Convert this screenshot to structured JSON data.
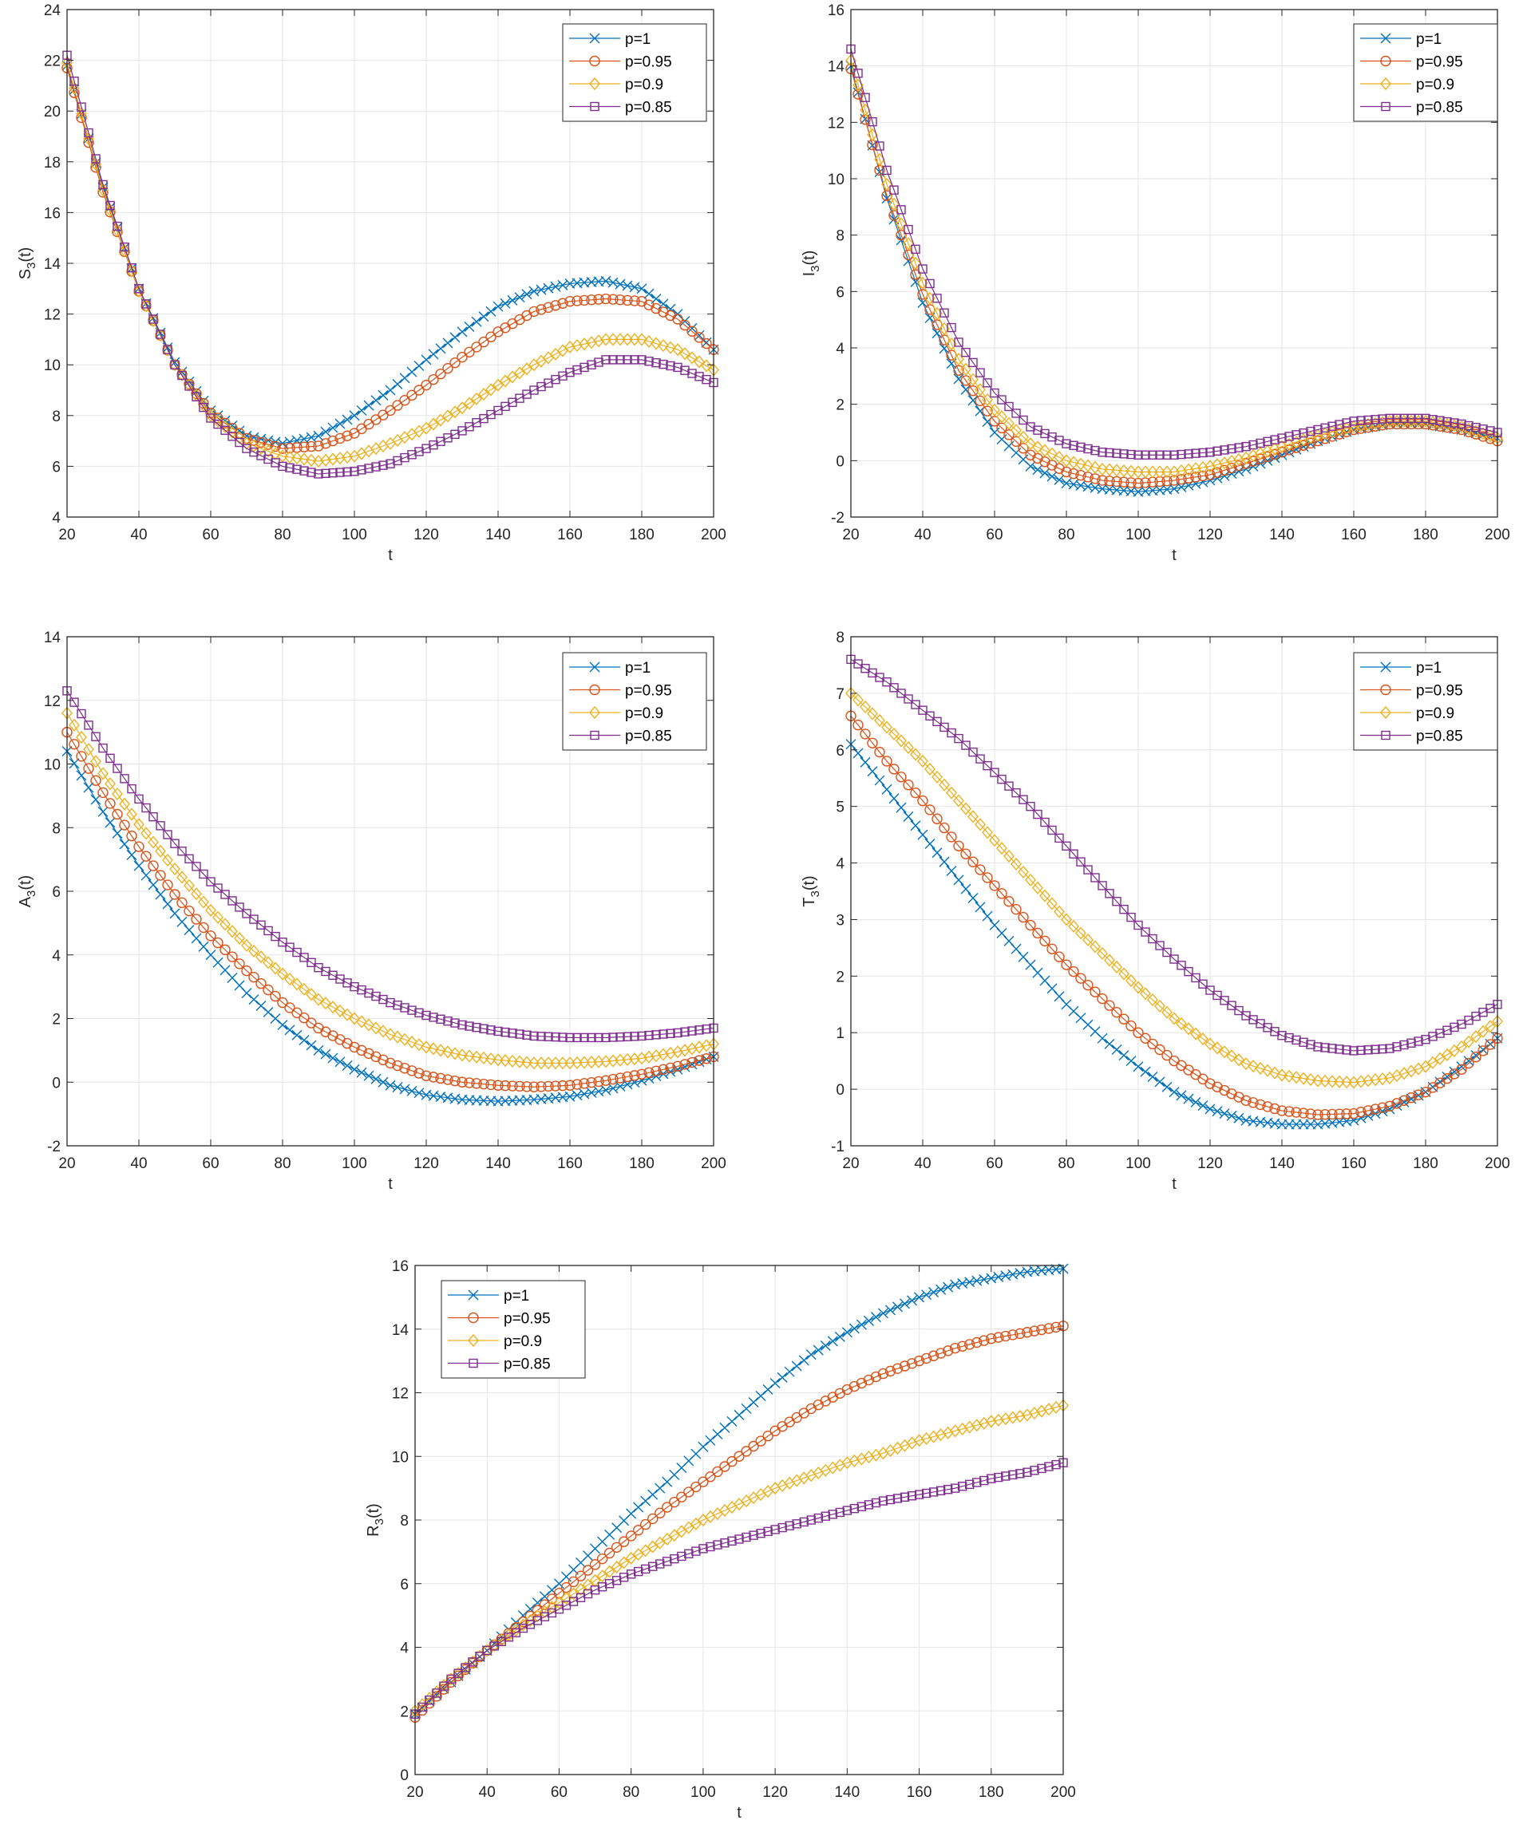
{
  "legend_labels": [
    "p=1",
    "p=0.95",
    "p=0.9",
    "p=0.85"
  ],
  "series_colors": [
    "#0072BD",
    "#D95319",
    "#EDB120",
    "#7E2F8E"
  ],
  "series_markers": [
    "x-mark",
    "circle",
    "diamond",
    "square"
  ],
  "chart_data": [
    {
      "id": "S3",
      "type": "line",
      "xlabel": "t",
      "ylabel": "S",
      "ylabel_sub": "3",
      "ylabel_suffix": "(t)",
      "xlim": [
        20,
        200
      ],
      "ylim": [
        4,
        24
      ],
      "xticks": [
        20,
        40,
        60,
        80,
        100,
        120,
        140,
        160,
        180,
        200
      ],
      "yticks": [
        4,
        6,
        8,
        10,
        12,
        14,
        16,
        18,
        20,
        22,
        24
      ],
      "grid": true,
      "legend_position": "top-right",
      "series": [
        {
          "name": "p=1",
          "x": [
            20,
            30,
            40,
            50,
            60,
            70,
            80,
            90,
            100,
            110,
            120,
            130,
            140,
            150,
            160,
            170,
            180,
            190,
            200
          ],
          "values": [
            21.8,
            17.0,
            13.0,
            10.1,
            8.2,
            7.2,
            6.9,
            7.2,
            8.0,
            9.0,
            10.2,
            11.3,
            12.3,
            12.9,
            13.2,
            13.3,
            13.0,
            12.0,
            10.6
          ]
        },
        {
          "name": "p=0.95",
          "x": [
            20,
            30,
            40,
            50,
            60,
            70,
            80,
            90,
            100,
            110,
            120,
            130,
            140,
            150,
            160,
            170,
            180,
            190,
            200
          ],
          "values": [
            21.7,
            16.8,
            12.9,
            10.0,
            8.1,
            7.1,
            6.7,
            6.8,
            7.3,
            8.2,
            9.2,
            10.3,
            11.3,
            12.1,
            12.5,
            12.6,
            12.5,
            11.8,
            10.6
          ]
        },
        {
          "name": "p=0.9",
          "x": [
            20,
            30,
            40,
            50,
            60,
            70,
            80,
            90,
            100,
            110,
            120,
            130,
            140,
            150,
            160,
            170,
            180,
            190,
            200
          ],
          "values": [
            21.9,
            16.9,
            12.9,
            10.0,
            8.0,
            6.9,
            6.4,
            6.2,
            6.4,
            6.9,
            7.5,
            8.3,
            9.2,
            10.0,
            10.7,
            11.0,
            11.0,
            10.6,
            9.8
          ]
        },
        {
          "name": "p=0.85",
          "x": [
            20,
            30,
            40,
            50,
            60,
            70,
            80,
            90,
            100,
            110,
            120,
            130,
            140,
            150,
            160,
            170,
            180,
            190,
            200
          ],
          "values": [
            22.2,
            17.1,
            13.0,
            10.0,
            7.9,
            6.7,
            6.0,
            5.7,
            5.8,
            6.1,
            6.7,
            7.4,
            8.2,
            9.0,
            9.7,
            10.2,
            10.2,
            9.9,
            9.3
          ]
        }
      ]
    },
    {
      "id": "I3",
      "type": "line",
      "xlabel": "t",
      "ylabel": "I",
      "ylabel_sub": "3",
      "ylabel_suffix": "(t)",
      "xlim": [
        20,
        200
      ],
      "ylim": [
        -2,
        16
      ],
      "xticks": [
        20,
        40,
        60,
        80,
        100,
        120,
        140,
        160,
        180,
        200
      ],
      "yticks": [
        -2,
        0,
        2,
        4,
        6,
        8,
        10,
        12,
        14,
        16
      ],
      "grid": true,
      "legend_position": "top-right",
      "series": [
        {
          "name": "p=1",
          "x": [
            20,
            30,
            40,
            50,
            60,
            70,
            80,
            90,
            100,
            110,
            120,
            130,
            140,
            150,
            160,
            170,
            180,
            190,
            200
          ],
          "values": [
            14.0,
            9.3,
            5.6,
            2.9,
            1.0,
            -0.2,
            -0.8,
            -1.0,
            -1.1,
            -1.0,
            -0.7,
            -0.3,
            0.2,
            0.7,
            1.1,
            1.3,
            1.3,
            1.1,
            0.8
          ]
        },
        {
          "name": "p=0.95",
          "x": [
            20,
            30,
            40,
            50,
            60,
            70,
            80,
            90,
            100,
            110,
            120,
            130,
            140,
            150,
            160,
            170,
            180,
            190,
            200
          ],
          "values": [
            13.9,
            9.4,
            5.9,
            3.2,
            1.4,
            0.2,
            -0.4,
            -0.7,
            -0.8,
            -0.7,
            -0.5,
            -0.1,
            0.3,
            0.7,
            1.1,
            1.3,
            1.3,
            1.1,
            0.7
          ]
        },
        {
          "name": "p=0.9",
          "x": [
            20,
            30,
            40,
            50,
            60,
            70,
            80,
            90,
            100,
            110,
            120,
            130,
            140,
            150,
            160,
            170,
            180,
            190,
            200
          ],
          "values": [
            14.2,
            9.8,
            6.3,
            3.6,
            1.8,
            0.6,
            0.0,
            -0.3,
            -0.4,
            -0.4,
            -0.2,
            0.1,
            0.5,
            0.9,
            1.2,
            1.4,
            1.4,
            1.2,
            0.8
          ]
        },
        {
          "name": "p=0.85",
          "x": [
            20,
            30,
            40,
            50,
            60,
            70,
            80,
            90,
            100,
            110,
            120,
            130,
            140,
            150,
            160,
            170,
            180,
            190,
            200
          ],
          "values": [
            14.6,
            10.3,
            6.8,
            4.2,
            2.4,
            1.2,
            0.6,
            0.3,
            0.2,
            0.2,
            0.3,
            0.5,
            0.8,
            1.1,
            1.4,
            1.5,
            1.5,
            1.3,
            1.0
          ]
        }
      ]
    },
    {
      "id": "A3",
      "type": "line",
      "xlabel": "t",
      "ylabel": "A",
      "ylabel_sub": "3",
      "ylabel_suffix": "(t)",
      "xlim": [
        20,
        200
      ],
      "ylim": [
        -2,
        14
      ],
      "xticks": [
        20,
        40,
        60,
        80,
        100,
        120,
        140,
        160,
        180,
        200
      ],
      "yticks": [
        -2,
        0,
        2,
        4,
        6,
        8,
        10,
        12,
        14
      ],
      "grid": true,
      "legend_position": "top-right",
      "series": [
        {
          "name": "p=1",
          "x": [
            20,
            30,
            40,
            50,
            60,
            70,
            80,
            90,
            100,
            110,
            120,
            130,
            140,
            150,
            160,
            170,
            180,
            190,
            200
          ],
          "values": [
            10.4,
            8.5,
            6.8,
            5.3,
            4.0,
            2.8,
            1.8,
            1.0,
            0.4,
            -0.1,
            -0.4,
            -0.55,
            -0.6,
            -0.55,
            -0.45,
            -0.25,
            0.05,
            0.4,
            0.8
          ]
        },
        {
          "name": "p=0.95",
          "x": [
            20,
            30,
            40,
            50,
            60,
            70,
            80,
            90,
            100,
            110,
            120,
            130,
            140,
            150,
            160,
            170,
            180,
            190,
            200
          ],
          "values": [
            11.0,
            9.1,
            7.4,
            5.9,
            4.6,
            3.5,
            2.5,
            1.7,
            1.1,
            0.6,
            0.2,
            0.0,
            -0.1,
            -0.15,
            -0.1,
            0.05,
            0.25,
            0.5,
            0.8
          ]
        },
        {
          "name": "p=0.9",
          "x": [
            20,
            30,
            40,
            50,
            60,
            70,
            80,
            90,
            100,
            110,
            120,
            130,
            140,
            150,
            160,
            170,
            180,
            190,
            200
          ],
          "values": [
            11.6,
            9.7,
            8.1,
            6.7,
            5.4,
            4.3,
            3.4,
            2.6,
            2.0,
            1.5,
            1.1,
            0.85,
            0.7,
            0.6,
            0.6,
            0.65,
            0.75,
            0.95,
            1.2
          ]
        },
        {
          "name": "p=0.85",
          "x": [
            20,
            30,
            40,
            50,
            60,
            70,
            80,
            90,
            100,
            110,
            120,
            130,
            140,
            150,
            160,
            170,
            180,
            190,
            200
          ],
          "values": [
            12.3,
            10.5,
            8.9,
            7.5,
            6.3,
            5.3,
            4.4,
            3.6,
            3.0,
            2.5,
            2.1,
            1.8,
            1.6,
            1.45,
            1.4,
            1.4,
            1.45,
            1.55,
            1.7
          ]
        }
      ]
    },
    {
      "id": "T3",
      "type": "line",
      "xlabel": "t",
      "ylabel": "T",
      "ylabel_sub": "3",
      "ylabel_suffix": "(t)",
      "xlim": [
        20,
        200
      ],
      "ylim": [
        -1,
        8
      ],
      "xticks": [
        20,
        40,
        60,
        80,
        100,
        120,
        140,
        160,
        180,
        200
      ],
      "yticks": [
        -1,
        0,
        1,
        2,
        3,
        4,
        5,
        6,
        7,
        8
      ],
      "grid": true,
      "legend_position": "top-right",
      "series": [
        {
          "name": "p=1",
          "x": [
            20,
            30,
            40,
            50,
            60,
            70,
            80,
            90,
            100,
            110,
            120,
            130,
            140,
            150,
            160,
            170,
            180,
            190,
            200
          ],
          "values": [
            6.1,
            5.3,
            4.5,
            3.7,
            2.9,
            2.2,
            1.5,
            0.9,
            0.4,
            -0.05,
            -0.35,
            -0.55,
            -0.62,
            -0.62,
            -0.55,
            -0.35,
            -0.05,
            0.4,
            0.9
          ]
        },
        {
          "name": "p=0.95",
          "x": [
            20,
            30,
            40,
            50,
            60,
            70,
            80,
            90,
            100,
            110,
            120,
            130,
            140,
            150,
            160,
            170,
            180,
            190,
            200
          ],
          "values": [
            6.6,
            5.8,
            5.1,
            4.3,
            3.6,
            2.9,
            2.2,
            1.6,
            1.0,
            0.5,
            0.1,
            -0.2,
            -0.38,
            -0.45,
            -0.43,
            -0.3,
            -0.05,
            0.35,
            0.9
          ]
        },
        {
          "name": "p=0.9",
          "x": [
            20,
            30,
            40,
            50,
            60,
            70,
            80,
            90,
            100,
            110,
            120,
            130,
            140,
            150,
            160,
            170,
            180,
            190,
            200
          ],
          "values": [
            7.0,
            6.4,
            5.8,
            5.1,
            4.4,
            3.7,
            3.0,
            2.4,
            1.8,
            1.25,
            0.8,
            0.45,
            0.25,
            0.15,
            0.12,
            0.2,
            0.4,
            0.75,
            1.2
          ]
        },
        {
          "name": "p=0.85",
          "x": [
            20,
            30,
            40,
            50,
            60,
            70,
            80,
            90,
            100,
            110,
            120,
            130,
            140,
            150,
            160,
            170,
            180,
            190,
            200
          ],
          "values": [
            7.6,
            7.2,
            6.7,
            6.2,
            5.6,
            5.0,
            4.3,
            3.6,
            2.9,
            2.3,
            1.75,
            1.3,
            0.95,
            0.75,
            0.68,
            0.72,
            0.88,
            1.15,
            1.5
          ]
        }
      ]
    },
    {
      "id": "R3",
      "type": "line",
      "xlabel": "t",
      "ylabel": "R",
      "ylabel_sub": "3",
      "ylabel_suffix": "(t)",
      "xlim": [
        20,
        200
      ],
      "ylim": [
        0,
        16
      ],
      "xticks": [
        20,
        40,
        60,
        80,
        100,
        120,
        140,
        160,
        180,
        200
      ],
      "yticks": [
        0,
        2,
        4,
        6,
        8,
        10,
        12,
        14,
        16
      ],
      "grid": true,
      "legend_position": "top-left",
      "series": [
        {
          "name": "p=1",
          "x": [
            20,
            30,
            40,
            50,
            60,
            70,
            80,
            90,
            100,
            110,
            120,
            130,
            140,
            150,
            160,
            170,
            180,
            190,
            200
          ],
          "values": [
            1.9,
            2.9,
            3.9,
            5.0,
            6.0,
            7.1,
            8.2,
            9.2,
            10.3,
            11.3,
            12.3,
            13.2,
            13.9,
            14.5,
            15.0,
            15.4,
            15.6,
            15.8,
            15.9
          ]
        },
        {
          "name": "p=0.95",
          "x": [
            20,
            30,
            40,
            50,
            60,
            70,
            80,
            90,
            100,
            110,
            120,
            130,
            140,
            150,
            160,
            170,
            180,
            190,
            200
          ],
          "values": [
            1.8,
            2.9,
            3.9,
            4.8,
            5.7,
            6.6,
            7.5,
            8.4,
            9.2,
            10.0,
            10.8,
            11.5,
            12.1,
            12.6,
            13.0,
            13.4,
            13.7,
            13.9,
            14.1
          ]
        },
        {
          "name": "p=0.9",
          "x": [
            20,
            30,
            40,
            50,
            60,
            70,
            80,
            90,
            100,
            110,
            120,
            130,
            140,
            150,
            160,
            170,
            180,
            190,
            200
          ],
          "values": [
            2.0,
            3.0,
            3.9,
            4.7,
            5.4,
            6.1,
            6.8,
            7.4,
            8.0,
            8.5,
            9.0,
            9.4,
            9.8,
            10.1,
            10.5,
            10.8,
            11.1,
            11.3,
            11.6
          ]
        },
        {
          "name": "p=0.85",
          "x": [
            20,
            30,
            40,
            50,
            60,
            70,
            80,
            90,
            100,
            110,
            120,
            130,
            140,
            150,
            160,
            170,
            180,
            190,
            200
          ],
          "values": [
            1.9,
            3.0,
            3.9,
            4.6,
            5.2,
            5.8,
            6.3,
            6.7,
            7.1,
            7.4,
            7.7,
            8.0,
            8.3,
            8.6,
            8.8,
            9.0,
            9.3,
            9.5,
            9.8
          ]
        }
      ]
    }
  ]
}
